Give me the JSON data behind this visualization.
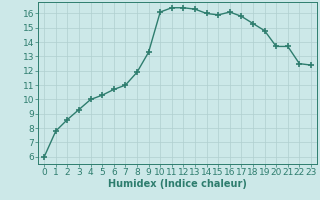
{
  "x": [
    0,
    1,
    2,
    3,
    4,
    5,
    6,
    7,
    8,
    9,
    10,
    11,
    12,
    13,
    14,
    15,
    16,
    17,
    18,
    19,
    20,
    21,
    22,
    23
  ],
  "y": [
    6.0,
    7.8,
    8.6,
    9.3,
    10.0,
    10.3,
    10.7,
    11.0,
    11.9,
    13.3,
    16.1,
    16.4,
    16.4,
    16.3,
    16.0,
    15.9,
    16.1,
    15.8,
    15.3,
    14.8,
    13.7,
    13.7,
    12.5,
    12.4
  ],
  "line_color": "#2e7d6e",
  "marker": "+",
  "marker_size": 4,
  "marker_lw": 1.2,
  "line_width": 1.0,
  "bg_color": "#cce8e8",
  "grid_color": "#b0cfcf",
  "axis_color": "#2e7d6e",
  "tick_color": "#2e7d6e",
  "xlabel": "Humidex (Indice chaleur)",
  "xlabel_fontsize": 7,
  "tick_fontsize": 6.5,
  "xlim": [
    -0.5,
    23.5
  ],
  "ylim": [
    5.5,
    16.8
  ],
  "yticks": [
    6,
    7,
    8,
    9,
    10,
    11,
    12,
    13,
    14,
    15,
    16
  ],
  "xticks": [
    0,
    1,
    2,
    3,
    4,
    5,
    6,
    7,
    8,
    9,
    10,
    11,
    12,
    13,
    14,
    15,
    16,
    17,
    18,
    19,
    20,
    21,
    22,
    23
  ]
}
